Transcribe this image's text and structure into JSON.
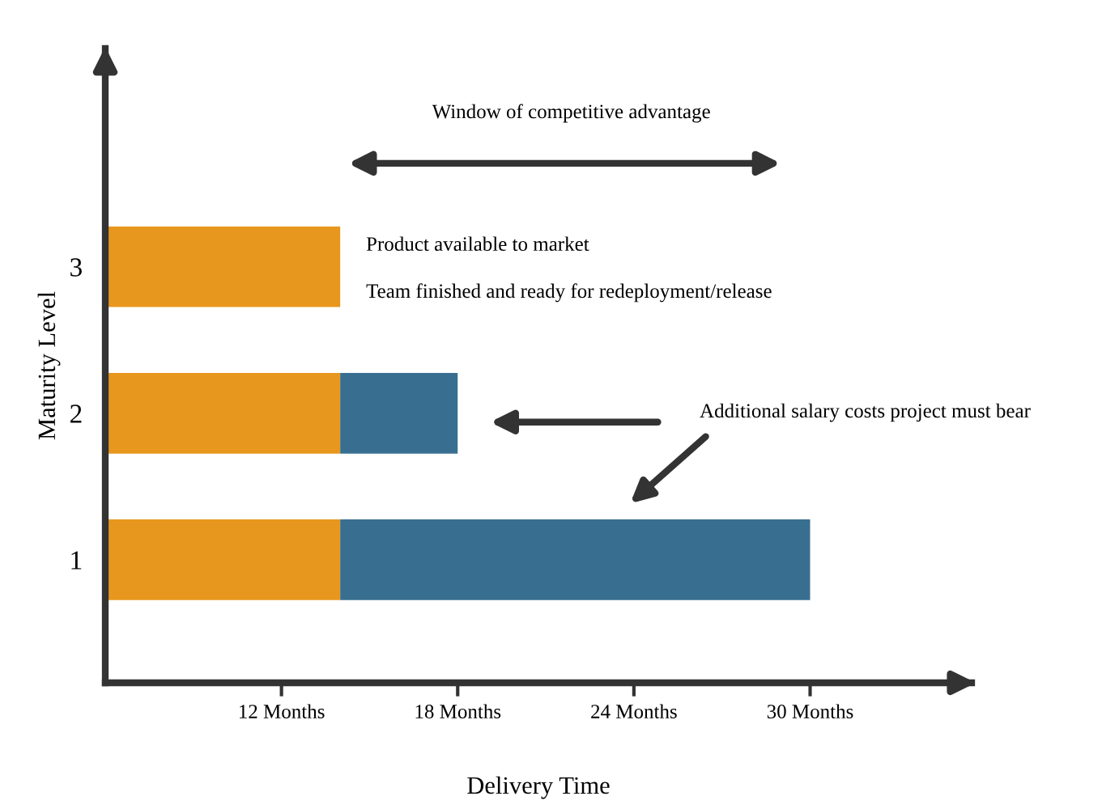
{
  "chart_data": {
    "type": "bar",
    "orientation": "horizontal",
    "categories": [
      "3",
      "2",
      "1"
    ],
    "series": [
      {
        "color": "#e8971e",
        "base": [
          6,
          6,
          6
        ],
        "values": [
          8,
          8,
          8
        ]
      },
      {
        "color": "#386f91",
        "base": [
          null,
          14,
          14
        ],
        "values": [
          null,
          4,
          16
        ]
      }
    ],
    "xlim": [
      6,
      35.5
    ],
    "xticks": [
      {
        "value": 12,
        "label": "12 Months"
      },
      {
        "value": 18,
        "label": "18 Months"
      },
      {
        "value": 24,
        "label": "24 Months"
      },
      {
        "value": 30,
        "label": "30 Months"
      }
    ],
    "xlabel": "Delivery Time",
    "ylabel": "Maturity Level",
    "annotations": [
      "Window of competitive advantage",
      "Product available to market",
      "Team finished and ready for redeployment/release",
      "Additional salary costs project must bear"
    ],
    "grid": false,
    "legend": false
  }
}
